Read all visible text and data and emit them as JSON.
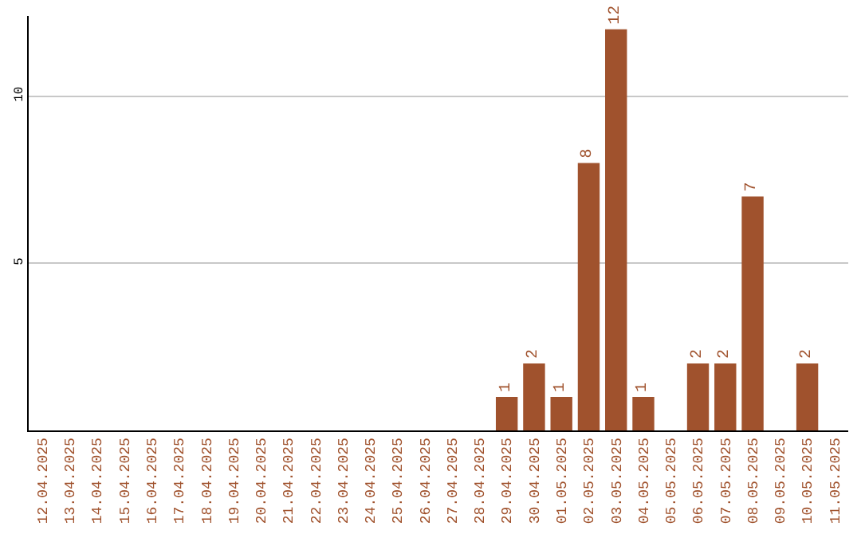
{
  "chart_data": {
    "type": "bar",
    "categories": [
      "12.04.2025",
      "13.04.2025",
      "14.04.2025",
      "15.04.2025",
      "16.04.2025",
      "17.04.2025",
      "18.04.2025",
      "19.04.2025",
      "20.04.2025",
      "21.04.2025",
      "22.04.2025",
      "23.04.2025",
      "24.04.2025",
      "25.04.2025",
      "26.04.2025",
      "27.04.2025",
      "28.04.2025",
      "29.04.2025",
      "30.04.2025",
      "01.05.2025",
      "02.05.2025",
      "03.05.2025",
      "04.05.2025",
      "05.05.2025",
      "06.05.2025",
      "07.05.2025",
      "08.05.2025",
      "09.05.2025",
      "10.05.2025",
      "11.05.2025"
    ],
    "values": [
      0,
      0,
      0,
      0,
      0,
      0,
      0,
      0,
      0,
      0,
      0,
      0,
      0,
      0,
      0,
      0,
      0,
      1,
      2,
      1,
      8,
      12,
      1,
      0,
      2,
      2,
      7,
      0,
      2,
      0
    ],
    "value_labels": [
      null,
      null,
      null,
      null,
      null,
      null,
      null,
      null,
      null,
      null,
      null,
      null,
      null,
      null,
      null,
      null,
      null,
      "1",
      "2",
      "1",
      "8",
      "12",
      "1",
      null,
      "2",
      "2",
      "7",
      null,
      "2",
      null
    ],
    "color": "#a0522d",
    "ylim": [
      0,
      12.4
    ],
    "yticks": [
      5,
      10
    ],
    "grid": "y"
  }
}
